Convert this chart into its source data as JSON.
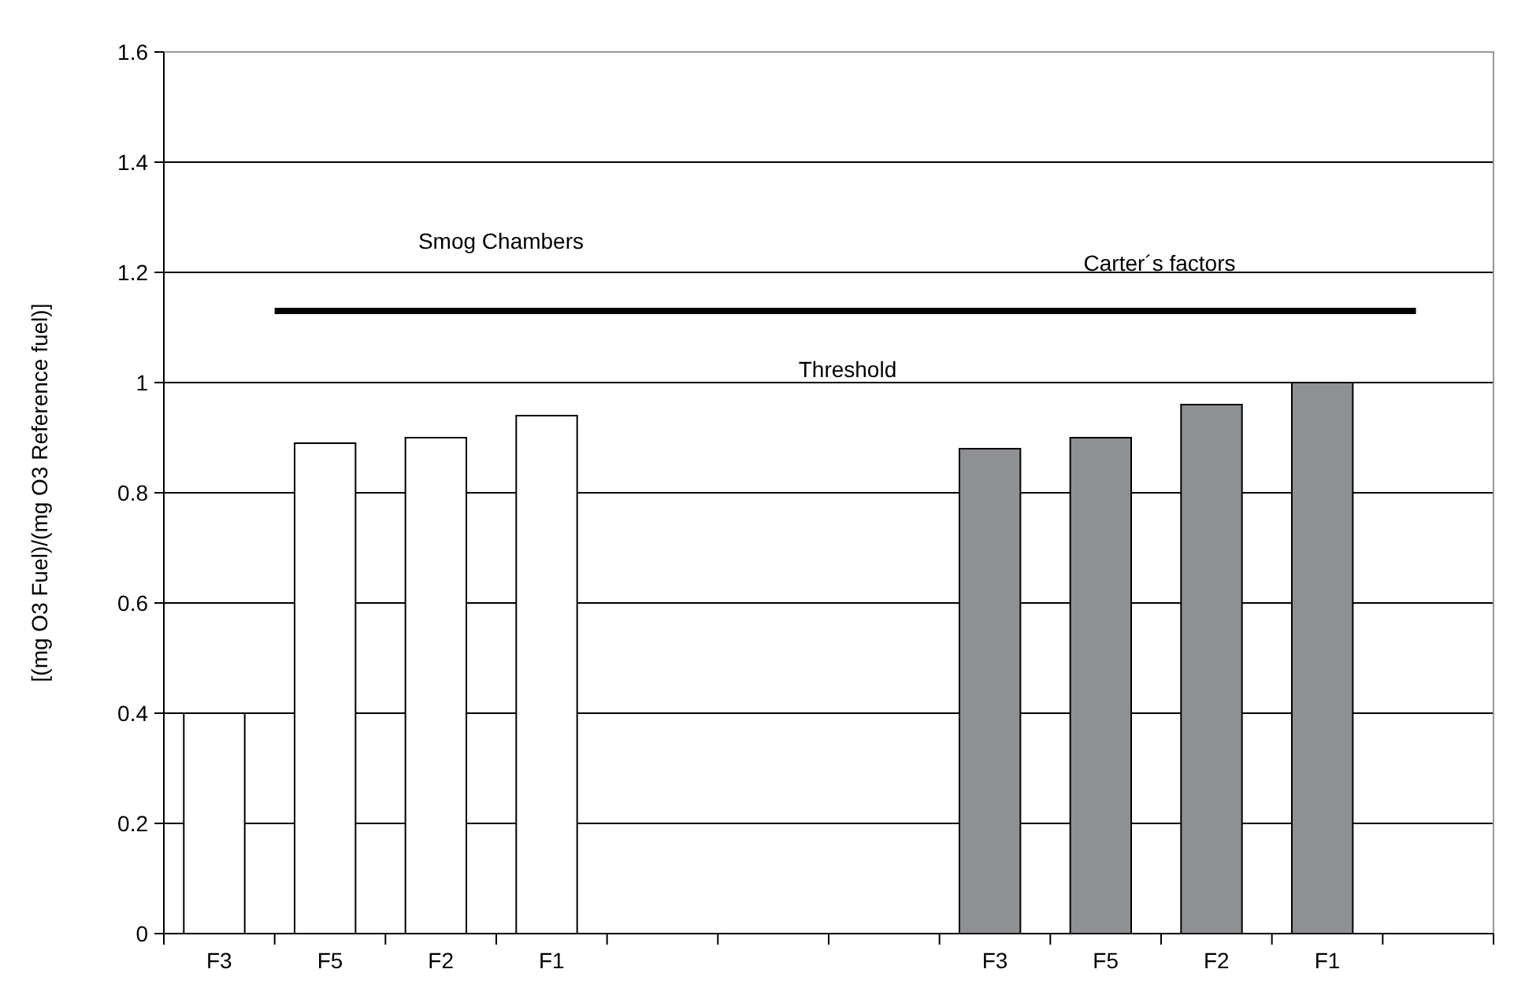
{
  "chart_data": {
    "type": "bar",
    "ylabel": "[(mg O3 Fuel)/(mg O3 Reference fuel)]",
    "categories": [
      "F3",
      "F5",
      "F2",
      "F1",
      null,
      null,
      null,
      "F3",
      "F5",
      "F2",
      "F1",
      null
    ],
    "values": [
      0.4,
      0.89,
      0.9,
      0.94,
      null,
      null,
      null,
      0.88,
      0.9,
      0.96,
      1.0,
      null
    ],
    "colors": [
      "#ffffff",
      "#ffffff",
      "#ffffff",
      "#ffffff",
      null,
      null,
      null,
      "#8e9094",
      "#8e9094",
      "#8e9094",
      "#8e9094",
      null
    ],
    "ylim": [
      0,
      1.6
    ],
    "yticks": [
      0,
      0.2,
      0.4,
      0.6,
      0.8,
      1,
      1.2,
      1.4,
      1.6
    ],
    "grid": "y",
    "ref_lines": [
      {
        "axis": "y",
        "value": 1.13,
        "label": "Threshold",
        "color": "#000000"
      }
    ],
    "annotations": [
      "Smog Chambers",
      "Carter´s factors"
    ]
  }
}
